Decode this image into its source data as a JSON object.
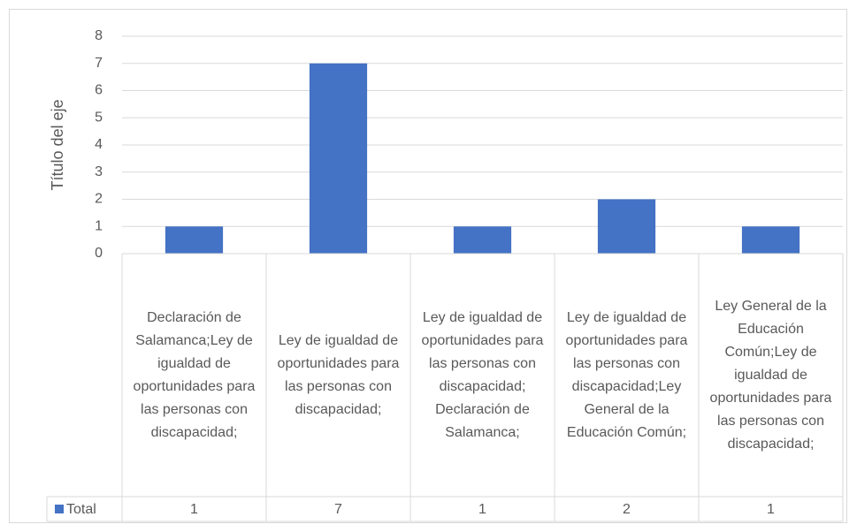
{
  "chart_data": {
    "type": "bar",
    "y_axis_title": "Título del eje",
    "categories": [
      "Declaración de Salamanca;Ley de igualdad de oportunidades para las personas con discapacidad;",
      "Ley de igualdad de oportunidades para las personas con discapacidad;",
      "Ley de igualdad de oportunidades para las personas con discapacidad; Declaración de Salamanca;",
      "Ley de igualdad de oportunidades para las personas con discapacidad;Ley General de la Educación Común;",
      "Ley General de la Educación Común;Ley de igualdad de oportunidades para las personas con discapacidad;"
    ],
    "series": [
      {
        "name": "Total",
        "color": "#4472c4",
        "values": [
          1,
          7,
          1,
          2,
          1
        ]
      }
    ],
    "ylim": [
      0,
      8
    ],
    "yticks": [
      0,
      1,
      2,
      3,
      4,
      5,
      6,
      7,
      8
    ],
    "grid": true,
    "data_table": true
  }
}
